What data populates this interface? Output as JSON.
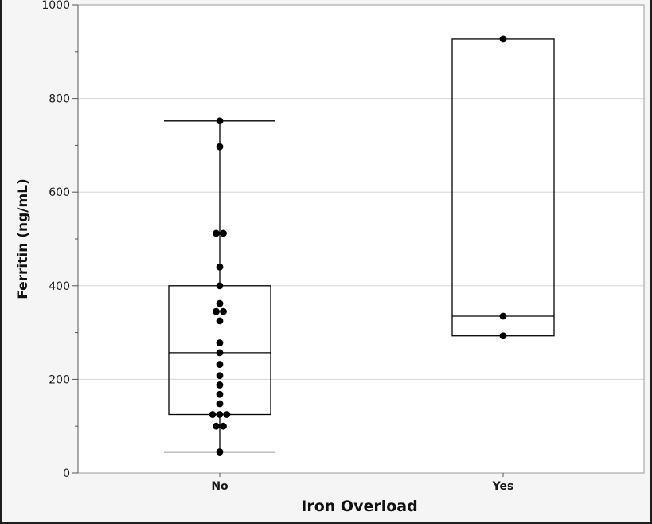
{
  "chart_data": {
    "type": "box",
    "title": "",
    "xlabel": "Iron Overload",
    "ylabel": "Ferritin (ng/mL)",
    "ylim": [
      0,
      1000
    ],
    "yticks": [
      0,
      200,
      400,
      600,
      800,
      1000
    ],
    "grid": true,
    "categories": [
      "No",
      "Yes"
    ],
    "boxes": [
      {
        "category": "No",
        "whisker_low": 45,
        "q1": 125,
        "median": 257,
        "q3": 400,
        "whisker_high": 752
      },
      {
        "category": "Yes",
        "whisker_low": 293,
        "q1": 293,
        "median": 335,
        "q3": 927,
        "whisker_high": 927
      }
    ],
    "points": [
      {
        "category": "No",
        "values": [
          752,
          697,
          512,
          512,
          440,
          400,
          362,
          345,
          345,
          325,
          278,
          257,
          232,
          208,
          188,
          168,
          148,
          125,
          125,
          125,
          100,
          100,
          45
        ]
      },
      {
        "category": "Yes",
        "values": [
          927,
          335,
          293
        ]
      }
    ],
    "colors": {
      "background": "#f5f5f5",
      "plot_background": "#ffffff",
      "points": "#000000",
      "box": "#000000",
      "grid": "#d6d6d6"
    }
  }
}
